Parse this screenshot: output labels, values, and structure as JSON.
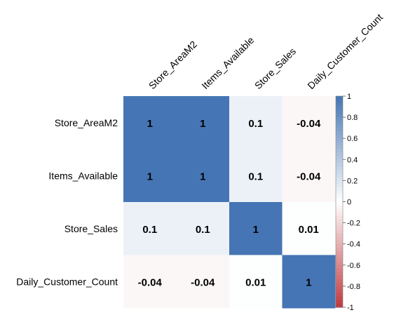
{
  "chart_data": {
    "type": "heatmap",
    "title": "",
    "xlabel": "",
    "ylabel": "",
    "variables": [
      "Store_AreaM2",
      "Items_Available",
      "Store_Sales",
      "Daily_Customer_Count"
    ],
    "matrix": [
      [
        1,
        1,
        0.1,
        -0.04
      ],
      [
        1,
        1,
        0.1,
        -0.04
      ],
      [
        0.1,
        0.1,
        1,
        0.01
      ],
      [
        -0.04,
        -0.04,
        0.01,
        1
      ]
    ],
    "cell_labels": [
      [
        "1",
        "1",
        "0.1",
        "-0.04"
      ],
      [
        "1",
        "1",
        "0.1",
        "-0.04"
      ],
      [
        "0.1",
        "0.1",
        "1",
        "0.01"
      ],
      [
        "-0.04",
        "-0.04",
        "0.01",
        "1"
      ]
    ],
    "color_range": [
      -1,
      1
    ],
    "colorbar": {
      "position": "right",
      "ticks": [
        1,
        0.8,
        0.6,
        0.4,
        0.2,
        0,
        -0.2,
        -0.4,
        -0.6,
        -0.8,
        -1
      ],
      "tick_labels": [
        "1",
        "0.8",
        "0.6",
        "0.4",
        "0.2",
        "0",
        "-0.2",
        "-0.4",
        "-0.6",
        "-0.8",
        "-1"
      ]
    },
    "colors": {
      "positive": "#4575b4",
      "neutral": "#ffffff",
      "negative": "#c0393f"
    },
    "grid": false
  }
}
